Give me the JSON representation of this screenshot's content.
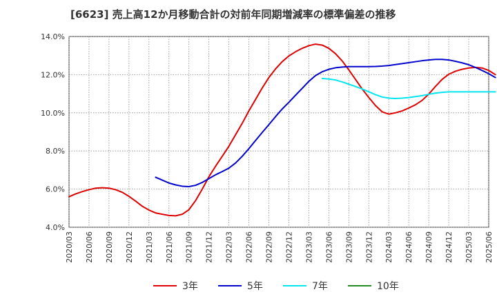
{
  "title": "[6623]  売上高12か月移動合計の対前年同期増減率の標準偏差の推移",
  "chart_data": {
    "type": "line",
    "title": "[6623]  売上高12か月移動合計の対前年同期増減率の標準偏差の推移",
    "ylim": [
      4.0,
      14.0
    ],
    "y_ticks": [
      "4.0%",
      "6.0%",
      "8.0%",
      "10.0%",
      "12.0%",
      "14.0%"
    ],
    "y_tick_values": [
      4,
      6,
      8,
      10,
      12,
      14
    ],
    "x_ticks": [
      "2020/03",
      "2020/06",
      "2020/09",
      "2020/12",
      "2021/03",
      "2021/06",
      "2021/09",
      "2021/12",
      "2022/03",
      "2022/06",
      "2022/09",
      "2022/12",
      "2023/03",
      "2023/06",
      "2023/09",
      "2023/12",
      "2024/03",
      "2024/06",
      "2024/09",
      "2024/12",
      "2025/03",
      "2025/06"
    ],
    "grid": true,
    "legend_position": "bottom",
    "series": [
      {
        "name": "3年",
        "color": "#dd0000",
        "points": [
          [
            "2020/03",
            5.6
          ],
          [
            "2020/04",
            5.75
          ],
          [
            "2020/05",
            5.87
          ],
          [
            "2020/06",
            5.97
          ],
          [
            "2020/07",
            6.05
          ],
          [
            "2020/08",
            6.07
          ],
          [
            "2020/09",
            6.05
          ],
          [
            "2020/10",
            5.97
          ],
          [
            "2020/11",
            5.83
          ],
          [
            "2020/12",
            5.62
          ],
          [
            "2021/01",
            5.37
          ],
          [
            "2021/02",
            5.1
          ],
          [
            "2021/03",
            4.9
          ],
          [
            "2021/04",
            4.75
          ],
          [
            "2021/05",
            4.68
          ],
          [
            "2021/06",
            4.62
          ],
          [
            "2021/07",
            4.6
          ],
          [
            "2021/08",
            4.68
          ],
          [
            "2021/09",
            4.92
          ],
          [
            "2021/10",
            5.4
          ],
          [
            "2021/11",
            6.0
          ],
          [
            "2021/12",
            6.65
          ],
          [
            "2022/01",
            7.2
          ],
          [
            "2022/02",
            7.72
          ],
          [
            "2022/03",
            8.25
          ],
          [
            "2022/04",
            8.85
          ],
          [
            "2022/05",
            9.45
          ],
          [
            "2022/06",
            10.1
          ],
          [
            "2022/07",
            10.7
          ],
          [
            "2022/08",
            11.3
          ],
          [
            "2022/09",
            11.85
          ],
          [
            "2022/10",
            12.3
          ],
          [
            "2022/11",
            12.68
          ],
          [
            "2022/12",
            12.98
          ],
          [
            "2023/01",
            13.2
          ],
          [
            "2023/02",
            13.38
          ],
          [
            "2023/03",
            13.52
          ],
          [
            "2023/04",
            13.6
          ],
          [
            "2023/05",
            13.55
          ],
          [
            "2023/06",
            13.38
          ],
          [
            "2023/07",
            13.1
          ],
          [
            "2023/08",
            12.72
          ],
          [
            "2023/09",
            12.25
          ],
          [
            "2023/10",
            11.75
          ],
          [
            "2023/11",
            11.25
          ],
          [
            "2023/12",
            10.8
          ],
          [
            "2024/01",
            10.38
          ],
          [
            "2024/02",
            10.05
          ],
          [
            "2024/03",
            9.93
          ],
          [
            "2024/04",
            10.0
          ],
          [
            "2024/05",
            10.1
          ],
          [
            "2024/06",
            10.25
          ],
          [
            "2024/07",
            10.42
          ],
          [
            "2024/08",
            10.65
          ],
          [
            "2024/09",
            10.98
          ],
          [
            "2024/10",
            11.38
          ],
          [
            "2024/11",
            11.75
          ],
          [
            "2024/12",
            12.02
          ],
          [
            "2025/01",
            12.18
          ],
          [
            "2025/02",
            12.28
          ],
          [
            "2025/03",
            12.35
          ],
          [
            "2025/04",
            12.38
          ],
          [
            "2025/05",
            12.35
          ],
          [
            "2025/06",
            12.22
          ],
          [
            "2025/07",
            12.0
          ]
        ]
      },
      {
        "name": "5年",
        "color": "#0000cc",
        "points": [
          [
            "2021/04",
            6.62
          ],
          [
            "2021/05",
            6.47
          ],
          [
            "2021/06",
            6.32
          ],
          [
            "2021/07",
            6.22
          ],
          [
            "2021/08",
            6.15
          ],
          [
            "2021/09",
            6.13
          ],
          [
            "2021/10",
            6.2
          ],
          [
            "2021/11",
            6.35
          ],
          [
            "2021/12",
            6.55
          ],
          [
            "2022/01",
            6.75
          ],
          [
            "2022/02",
            6.92
          ],
          [
            "2022/03",
            7.1
          ],
          [
            "2022/04",
            7.37
          ],
          [
            "2022/05",
            7.72
          ],
          [
            "2022/06",
            8.12
          ],
          [
            "2022/07",
            8.55
          ],
          [
            "2022/08",
            8.97
          ],
          [
            "2022/09",
            9.38
          ],
          [
            "2022/10",
            9.8
          ],
          [
            "2022/11",
            10.2
          ],
          [
            "2022/12",
            10.55
          ],
          [
            "2023/01",
            10.92
          ],
          [
            "2023/02",
            11.28
          ],
          [
            "2023/03",
            11.65
          ],
          [
            "2023/04",
            11.95
          ],
          [
            "2023/05",
            12.15
          ],
          [
            "2023/06",
            12.28
          ],
          [
            "2023/07",
            12.36
          ],
          [
            "2023/08",
            12.4
          ],
          [
            "2023/09",
            12.42
          ],
          [
            "2023/10",
            12.42
          ],
          [
            "2023/11",
            12.42
          ],
          [
            "2023/12",
            12.42
          ],
          [
            "2024/01",
            12.43
          ],
          [
            "2024/02",
            12.45
          ],
          [
            "2024/03",
            12.48
          ],
          [
            "2024/04",
            12.53
          ],
          [
            "2024/05",
            12.58
          ],
          [
            "2024/06",
            12.63
          ],
          [
            "2024/07",
            12.68
          ],
          [
            "2024/08",
            12.73
          ],
          [
            "2024/09",
            12.77
          ],
          [
            "2024/10",
            12.8
          ],
          [
            "2024/11",
            12.8
          ],
          [
            "2024/12",
            12.77
          ],
          [
            "2025/01",
            12.7
          ],
          [
            "2025/02",
            12.62
          ],
          [
            "2025/03",
            12.52
          ],
          [
            "2025/04",
            12.38
          ],
          [
            "2025/05",
            12.22
          ],
          [
            "2025/06",
            12.05
          ],
          [
            "2025/07",
            11.85
          ]
        ]
      },
      {
        "name": "7年",
        "color": "#00e5ee",
        "points": [
          [
            "2023/05",
            11.8
          ],
          [
            "2023/06",
            11.77
          ],
          [
            "2023/07",
            11.72
          ],
          [
            "2023/08",
            11.62
          ],
          [
            "2023/09",
            11.5
          ],
          [
            "2023/10",
            11.38
          ],
          [
            "2023/11",
            11.25
          ],
          [
            "2023/12",
            11.1
          ],
          [
            "2024/01",
            10.95
          ],
          [
            "2024/02",
            10.83
          ],
          [
            "2024/03",
            10.77
          ],
          [
            "2024/04",
            10.75
          ],
          [
            "2024/05",
            10.77
          ],
          [
            "2024/06",
            10.8
          ],
          [
            "2024/07",
            10.85
          ],
          [
            "2024/08",
            10.9
          ],
          [
            "2024/09",
            10.97
          ],
          [
            "2024/10",
            11.03
          ],
          [
            "2024/11",
            11.07
          ],
          [
            "2024/12",
            11.1
          ],
          [
            "2025/01",
            11.1
          ],
          [
            "2025/02",
            11.1
          ],
          [
            "2025/03",
            11.1
          ],
          [
            "2025/04",
            11.1
          ],
          [
            "2025/05",
            11.1
          ],
          [
            "2025/06",
            11.1
          ],
          [
            "2025/07",
            11.1
          ]
        ]
      },
      {
        "name": "10年",
        "color": "#228b22",
        "points": []
      }
    ]
  }
}
